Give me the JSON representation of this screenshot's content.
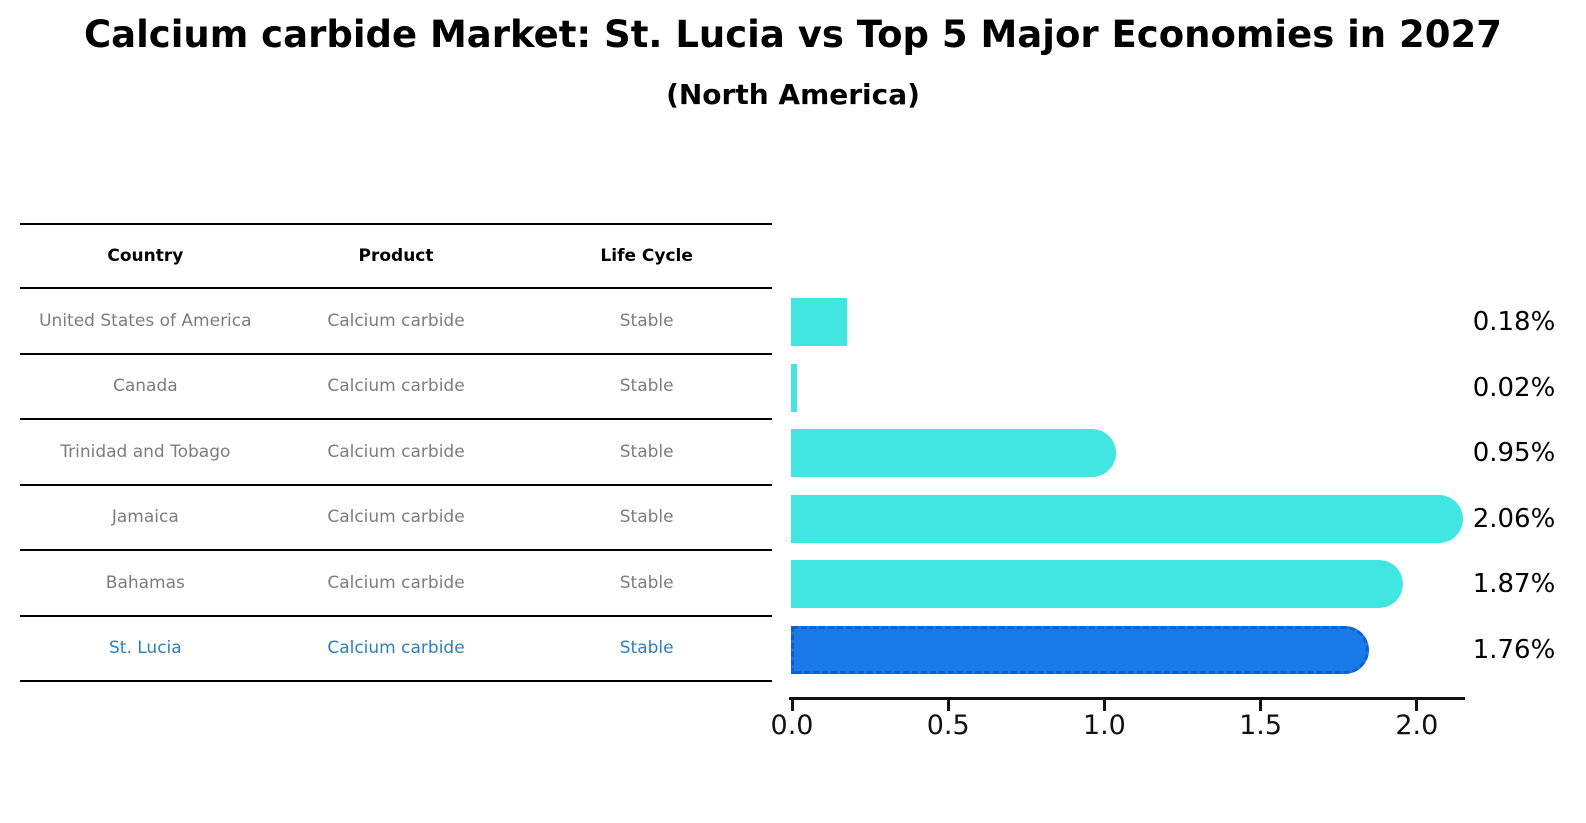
{
  "header": {
    "title": "Calcium carbide Market: St. Lucia vs Top 5 Major Economies in 2027",
    "subtitle": "(North America)"
  },
  "table": {
    "columns": [
      "Country",
      "Product",
      "Life Cycle"
    ],
    "rows": [
      {
        "country": "United States of America",
        "product": "Calcium carbide",
        "life_cycle": "Stable",
        "highlight": false
      },
      {
        "country": "Canada",
        "product": "Calcium carbide",
        "life_cycle": "Stable",
        "highlight": false
      },
      {
        "country": "Trinidad and Tobago",
        "product": "Calcium carbide",
        "life_cycle": "Stable",
        "highlight": false
      },
      {
        "country": "Jamaica",
        "product": "Calcium carbide",
        "life_cycle": "Stable",
        "highlight": false
      },
      {
        "country": "Bahamas",
        "product": "Calcium carbide",
        "life_cycle": "Stable",
        "highlight": false
      },
      {
        "country": "St. Lucia",
        "product": "Calcium carbide",
        "life_cycle": "Stable",
        "highlight": true
      }
    ]
  },
  "chart_data": {
    "type": "bar",
    "orientation": "horizontal",
    "title": "Calcium carbide Market: St. Lucia vs Top 5 Major Economies in 2027",
    "subtitle": "(North America)",
    "categories": [
      "United States of America",
      "Canada",
      "Trinidad and Tobago",
      "Jamaica",
      "Bahamas",
      "St. Lucia"
    ],
    "values": [
      0.18,
      0.02,
      0.95,
      2.06,
      1.87,
      1.76
    ],
    "value_labels": [
      "0.18%",
      "0.02%",
      "0.95%",
      "2.06%",
      "1.87%",
      "1.76%"
    ],
    "x_ticks": [
      0.0,
      0.5,
      1.0,
      1.5,
      2.0
    ],
    "x_tick_labels": [
      "0.0",
      "0.5",
      "1.0",
      "1.5",
      "2.0"
    ],
    "xlim": [
      0,
      2.16
    ],
    "grid": false,
    "legend": false,
    "highlight_index": 5,
    "bar_color": "#40e6df",
    "highlight_bar_color": "#1a7be8",
    "highlight_border_color": "#0d5fd6",
    "highlight_text_color": "#2e7ebf"
  },
  "colors": {
    "background": "#ffffff",
    "text": "#000000",
    "muted_text": "#7d7d7d",
    "line": "#000000"
  }
}
